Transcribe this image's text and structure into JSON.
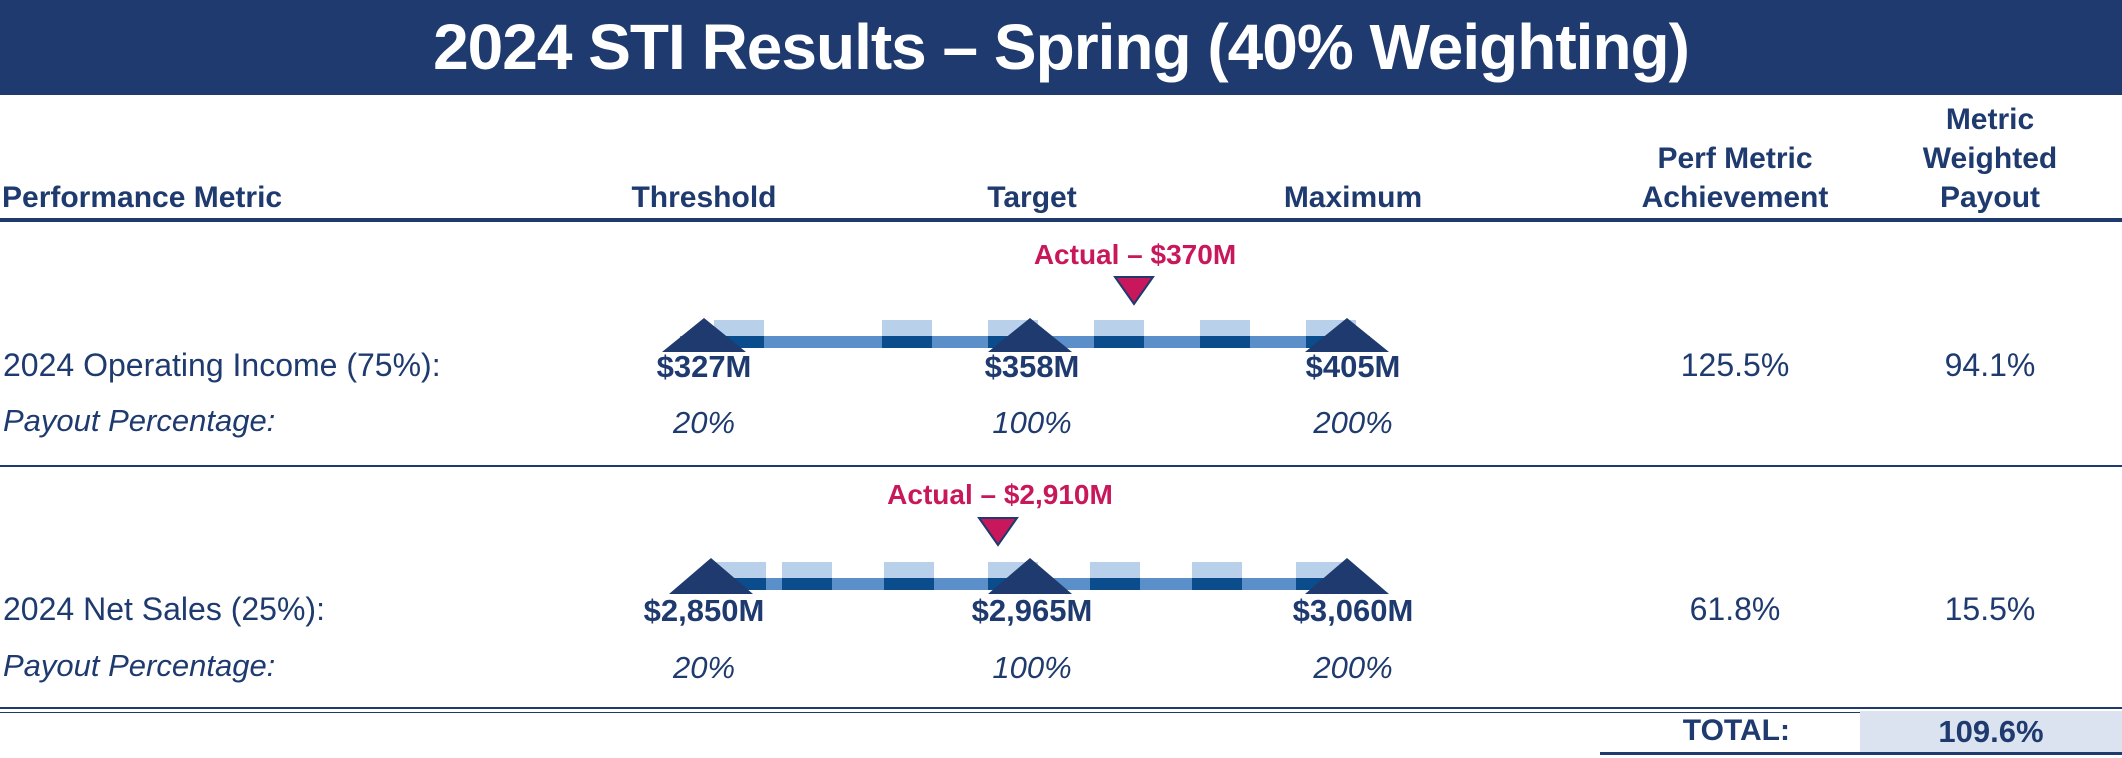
{
  "title": "2024 STI Results – Spring (40% Weighting)",
  "headers": {
    "metric": "Performance Metric",
    "threshold": "Threshold",
    "target": "Target",
    "maximum": "Maximum",
    "achievement": [
      "Perf Metric",
      "Achievement"
    ],
    "weighted": [
      "Metric",
      "Weighted",
      "Payout"
    ]
  },
  "rows": [
    {
      "label": "2024 Operating Income (75%):",
      "payout_label": "Payout Percentage:",
      "threshold": "$327M",
      "target": "$358M",
      "maximum": "$405M",
      "threshold_pct": "20%",
      "target_pct": "100%",
      "maximum_pct": "200%",
      "actual_label": "Actual – $370M",
      "actual_position_fraction": 0.255,
      "achievement": "125.5%",
      "weighted_payout": "94.1%"
    },
    {
      "label": "2024 Net Sales (25%):",
      "payout_label": "Payout Percentage:",
      "threshold": "$2,850M",
      "target": "$2,965M",
      "maximum": "$3,060M",
      "threshold_pct": "20%",
      "target_pct": "100%",
      "maximum_pct": "200%",
      "actual_label": "Actual – $2,910M",
      "actual_position_fraction": -0.478,
      "achievement": "61.8%",
      "weighted_payout": "15.5%"
    }
  ],
  "total": {
    "label": "TOTAL:",
    "value": "109.6%"
  },
  "colors": {
    "navy": "#1e3a6e",
    "accent": "#c8175a",
    "bar_mid": "#5b8fc9",
    "bar_light": "#b8d0ea",
    "bar_dark": "#0a4c8c"
  }
}
